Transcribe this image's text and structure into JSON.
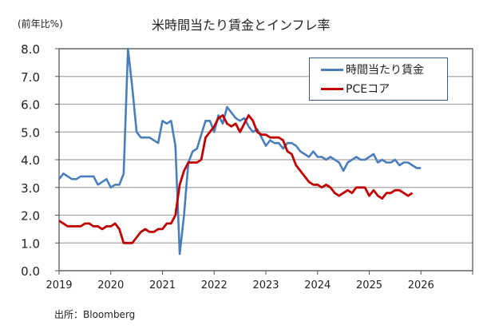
{
  "chart_data": {
    "type": "line",
    "title": "米時間当たり賃金とインフレ率",
    "ylabel": "(前年比%)",
    "xlabel": "",
    "source": "出所：Bloomberg",
    "ylim": [
      0,
      8
    ],
    "yticks": [
      "0.0",
      "1.0",
      "2.0",
      "3.0",
      "4.0",
      "5.0",
      "6.0",
      "7.0",
      "8.0"
    ],
    "xlim": [
      2019,
      2027
    ],
    "xticks": [
      "2019",
      "2020",
      "2021",
      "2022",
      "2023",
      "2024",
      "2025",
      "2026"
    ],
    "grid": "horizontal",
    "legend_position": "top-right",
    "x_start": "2019-01",
    "frequency": "monthly",
    "series": [
      {
        "name": "時間当たり賃金",
        "color": "#4a7ebb",
        "values": [
          3.3,
          3.5,
          3.4,
          3.3,
          3.3,
          3.4,
          3.4,
          3.4,
          3.4,
          3.1,
          3.2,
          3.3,
          3.0,
          3.1,
          3.1,
          3.5,
          8.0,
          6.6,
          5.0,
          4.8,
          4.8,
          4.8,
          4.7,
          4.6,
          5.4,
          5.3,
          5.4,
          4.5,
          0.6,
          2.0,
          3.9,
          4.3,
          4.4,
          4.9,
          5.4,
          5.4,
          5.0,
          5.6,
          5.3,
          5.9,
          5.7,
          5.5,
          5.4,
          5.5,
          5.2,
          5.0,
          5.1,
          4.8,
          4.5,
          4.7,
          4.6,
          4.6,
          4.4,
          4.6,
          4.6,
          4.5,
          4.3,
          4.2,
          4.1,
          4.3,
          4.1,
          4.1,
          4.0,
          4.1,
          4.0,
          3.9,
          3.6,
          3.9,
          4.0,
          4.1,
          4.0,
          4.0,
          4.1,
          4.2,
          3.9,
          4.0,
          3.9,
          3.9,
          4.0,
          3.8,
          3.9,
          3.9,
          3.8,
          3.7,
          3.7
        ]
      },
      {
        "name": "PCEコア",
        "color": "#c00000",
        "values": [
          1.8,
          1.7,
          1.6,
          1.6,
          1.6,
          1.6,
          1.7,
          1.7,
          1.6,
          1.6,
          1.5,
          1.6,
          1.6,
          1.7,
          1.5,
          1.0,
          1.0,
          1.0,
          1.2,
          1.4,
          1.5,
          1.4,
          1.4,
          1.5,
          1.5,
          1.7,
          1.7,
          2.0,
          3.1,
          3.6,
          3.9,
          3.9,
          3.9,
          4.0,
          4.8,
          5.0,
          5.2,
          5.5,
          5.6,
          5.3,
          5.2,
          5.3,
          5.0,
          5.3,
          5.6,
          5.4,
          5.0,
          4.9,
          4.9,
          4.8,
          4.8,
          4.8,
          4.7,
          4.3,
          4.2,
          3.8,
          3.6,
          3.4,
          3.2,
          3.1,
          3.1,
          3.0,
          3.1,
          3.0,
          2.8,
          2.7,
          2.8,
          2.9,
          2.8,
          3.0,
          3.0,
          3.0,
          2.7,
          2.9,
          2.7,
          2.6,
          2.8,
          2.8,
          2.9,
          2.9,
          2.8,
          2.7,
          2.8
        ]
      }
    ]
  }
}
